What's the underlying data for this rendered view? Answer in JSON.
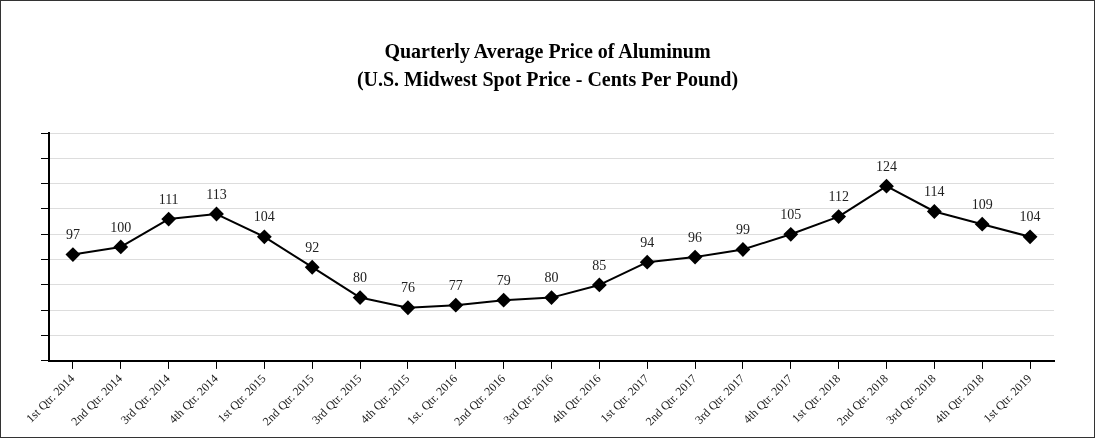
{
  "chart_data": {
    "type": "line",
    "title": "Quarterly Average Price of Aluminum",
    "subtitle": "(U.S. Midwest Spot Price - Cents Per Pound)",
    "categories": [
      "1st Qtr. 2014",
      "2nd Qtr. 2014",
      "3rd Qtr. 2014",
      "4th Qtr. 2014",
      "1st Qtr. 2015",
      "2nd Qtr. 2015",
      "3rd Qtr. 2015",
      "4th Qtr. 2015",
      "1st. Qtr. 2016",
      "2nd Qtr. 2016",
      "3rd Qtr. 2016",
      "4th Qtr. 2016",
      "1st Qtr. 2017",
      "2nd Qtr. 2017",
      "3rd Qtr. 2017",
      "4th Qtr. 2017",
      "1st Qtr. 2018",
      "2nd Qtr. 2018",
      "3rd Qtr. 2018",
      "4th Qtr. 2018",
      "1st Qtr. 2019"
    ],
    "series": [
      {
        "color": "#000000",
        "values": [
          97,
          100,
          111,
          113,
          104,
          92,
          80,
          76,
          77,
          79,
          80,
          85,
          94,
          96,
          99,
          105,
          112,
          124,
          114,
          109,
          104
        ]
      }
    ],
    "ylim": [
      55,
      145
    ],
    "yticks": [
      {
        "value": 55,
        "label": null
      },
      {
        "value": 65,
        "label": null
      },
      {
        "value": 75,
        "label": null
      },
      {
        "value": 85,
        "label": null
      },
      {
        "value": 95,
        "label": null
      },
      {
        "value": 105,
        "label": null
      },
      {
        "value": 115,
        "label": null
      },
      {
        "value": 125,
        "label": null
      },
      {
        "value": 135,
        "label": null
      },
      {
        "value": 145,
        "label": null
      }
    ],
    "tick_labels": "x",
    "grid": "y",
    "legend": false,
    "marker": "diamond",
    "line_style": "solid",
    "data_labels": true
  }
}
